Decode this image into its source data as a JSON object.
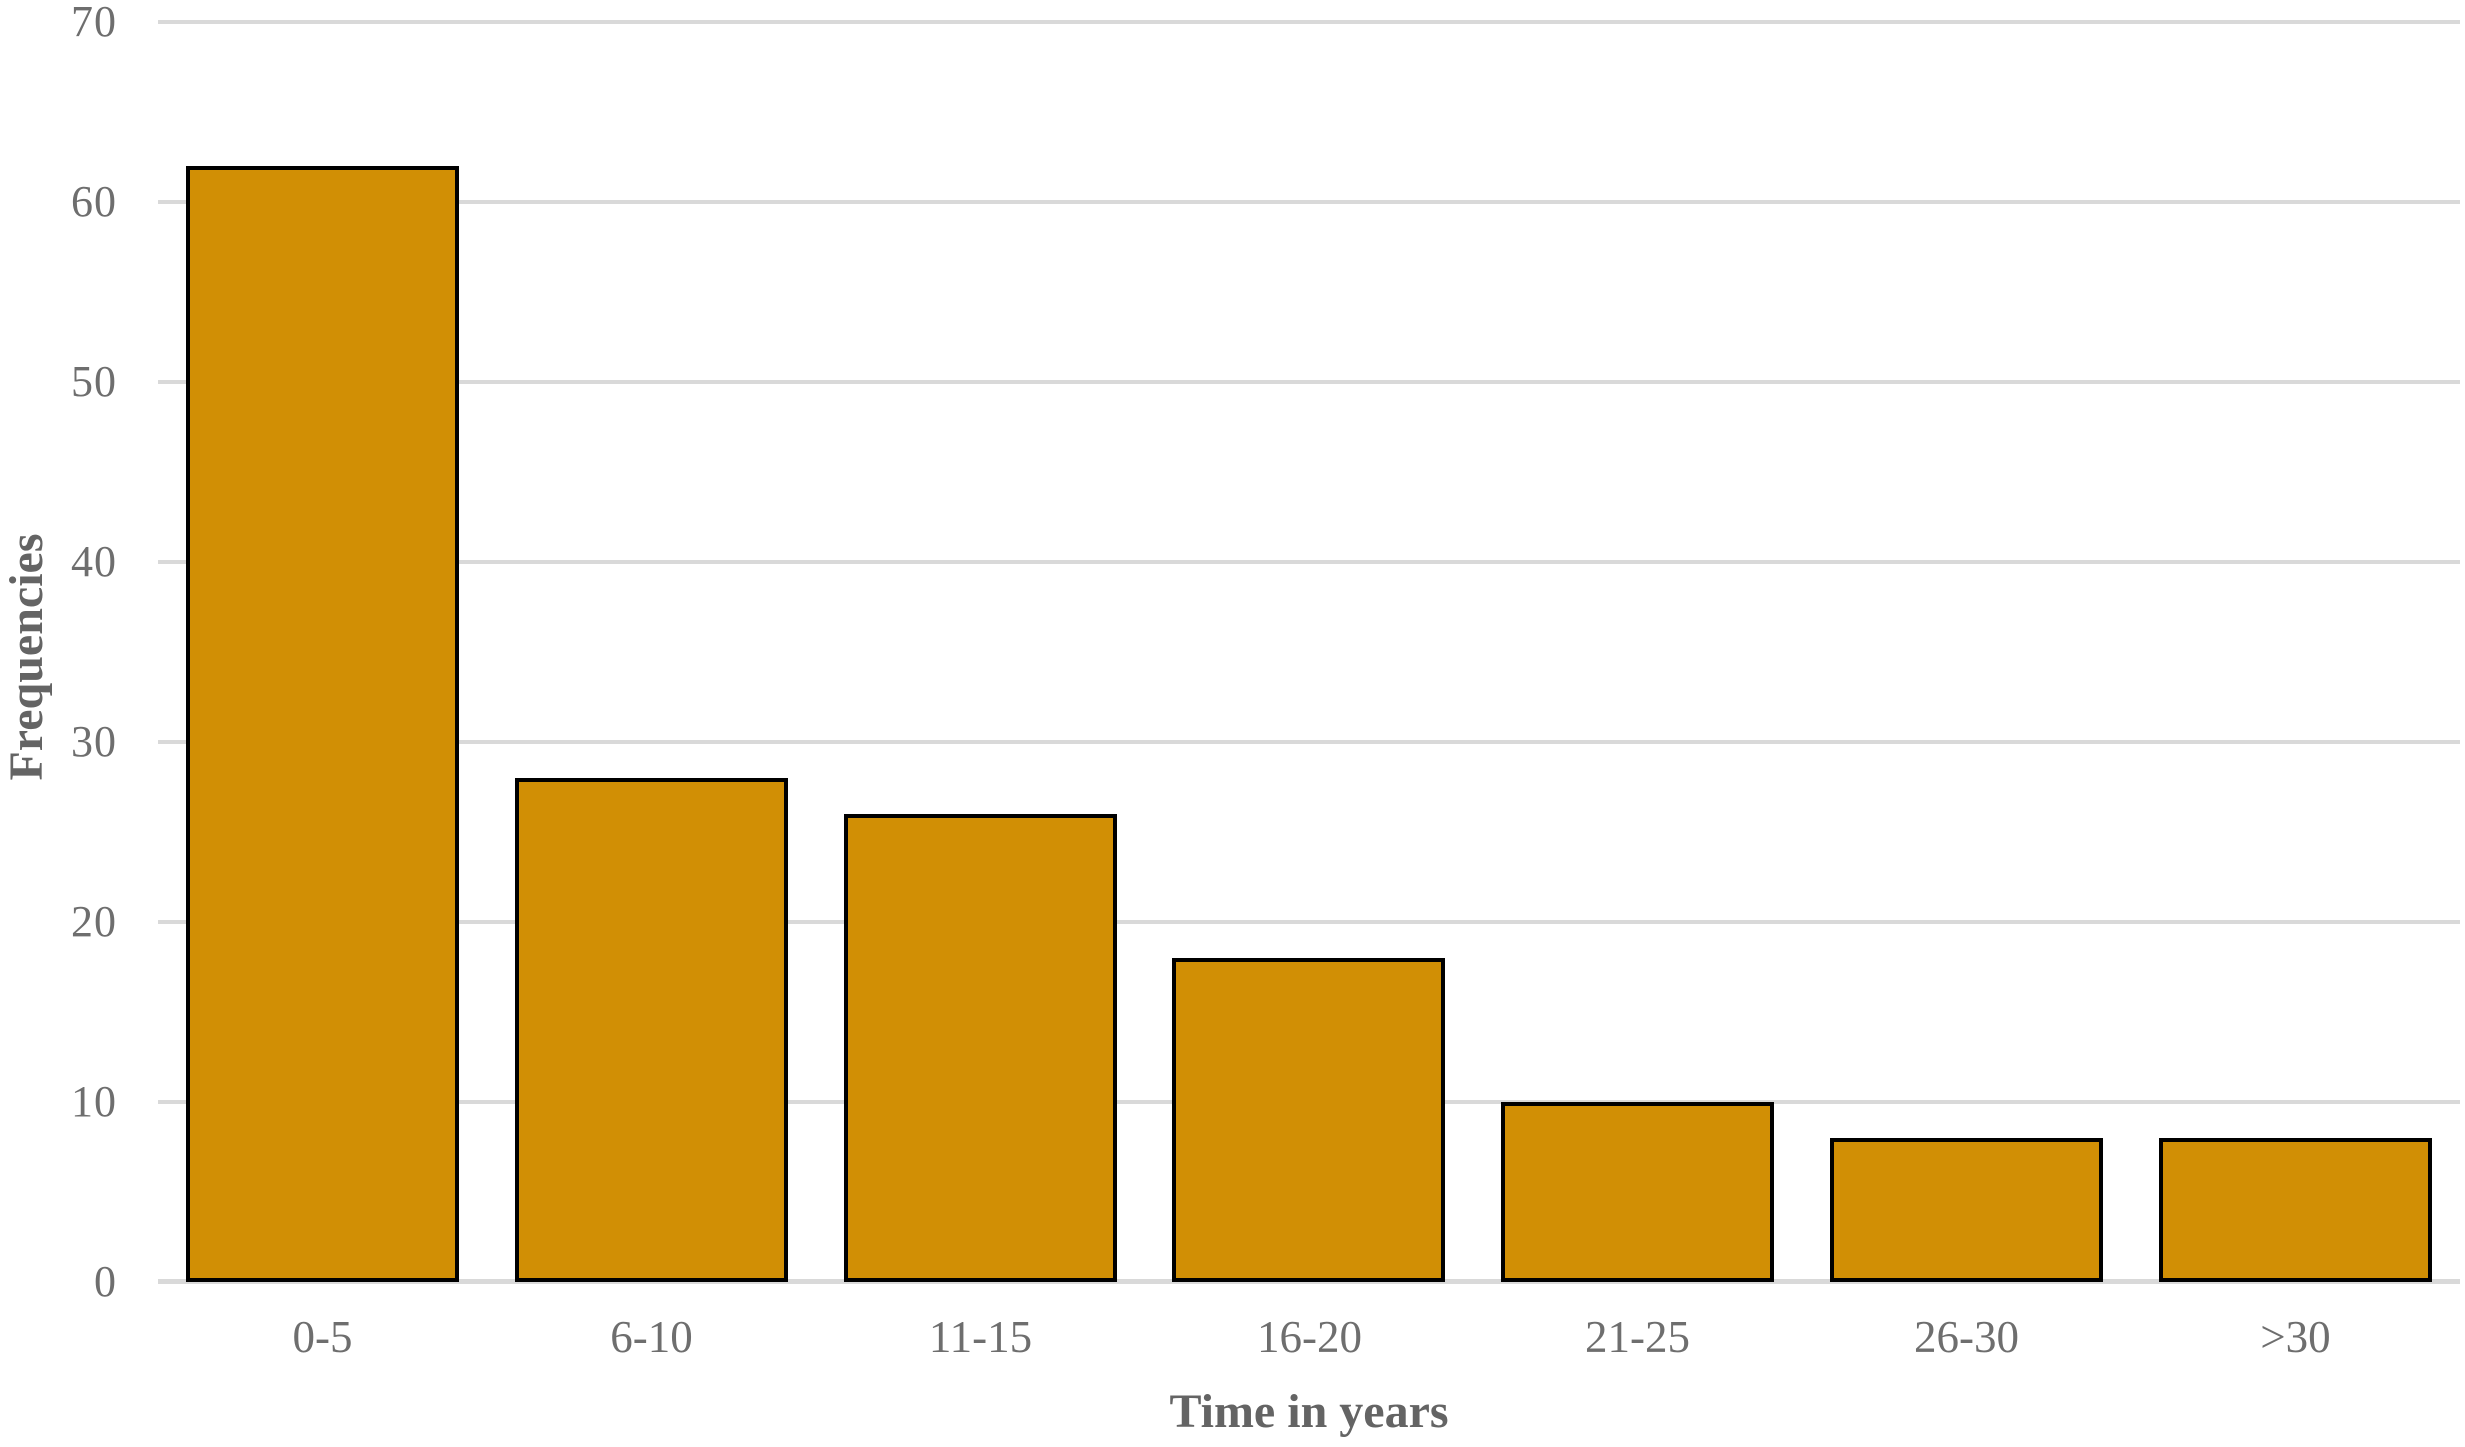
{
  "chart_data": {
    "type": "bar",
    "title": "",
    "categories": [
      "0-5",
      "6-10",
      "11-15",
      "16-20",
      "21-25",
      "26-30",
      ">30"
    ],
    "values": [
      62,
      28,
      26,
      18,
      10,
      8,
      8
    ],
    "xlabel": "Time in years",
    "ylabel": "Frequencies",
    "yticks": [
      0,
      10,
      20,
      30,
      40,
      50,
      60,
      70
    ],
    "ylim": [
      0,
      70
    ],
    "grid": "horizontal-only",
    "legend_position": "none",
    "colors": {
      "bar_fill": "#d18f05",
      "bar_border": "#000000",
      "gridline": "#d9d9d9",
      "axis_text": "#6e6e6e",
      "axis_title_text": "#646464",
      "background": "#ffffff"
    }
  }
}
